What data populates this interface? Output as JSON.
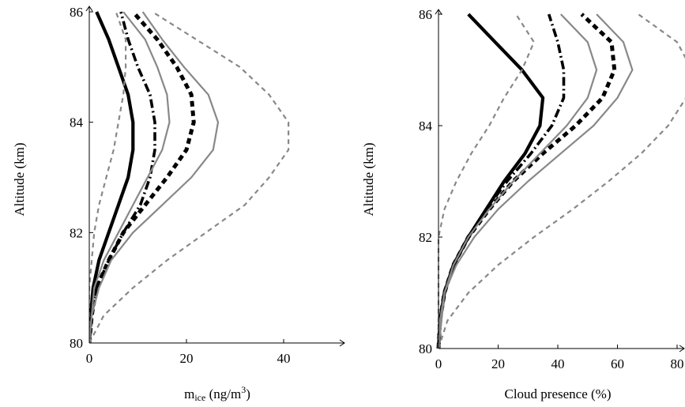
{
  "chart_data": [
    {
      "type": "line",
      "xlabel": "m",
      "xlabel_sub": "ice",
      "xlabel_units": " (ng/m",
      "xlabel_sup": "3",
      "xlabel_close": ")",
      "ylabel": "Altitude (km)",
      "xlim": [
        0,
        50
      ],
      "ylim": [
        80,
        86
      ],
      "xticks": [
        0,
        20,
        40
      ],
      "yticks": [
        80,
        82,
        84,
        86
      ],
      "grid": false,
      "series": [
        {
          "style": "solid-black-thick",
          "color": "#000000",
          "points": [
            [
              0,
              80
            ],
            [
              0.3,
              80.5
            ],
            [
              0.8,
              81
            ],
            [
              2,
              81.5
            ],
            [
              4,
              82
            ],
            [
              6,
              82.5
            ],
            [
              8,
              83
            ],
            [
              9,
              83.5
            ],
            [
              9,
              84
            ],
            [
              8,
              84.5
            ],
            [
              6,
              85
            ],
            [
              4,
              85.5
            ],
            [
              1.5,
              86
            ]
          ]
        },
        {
          "style": "dashdot-black",
          "color": "#000000",
          "points": [
            [
              0,
              80
            ],
            [
              0.5,
              80.5
            ],
            [
              1.5,
              81
            ],
            [
              4,
              81.5
            ],
            [
              7,
              82
            ],
            [
              10.5,
              82.5
            ],
            [
              12.5,
              83
            ],
            [
              13.5,
              83.5
            ],
            [
              13.5,
              84
            ],
            [
              12.5,
              84.5
            ],
            [
              10,
              85
            ],
            [
              8,
              85.5
            ],
            [
              6.5,
              86
            ]
          ]
        },
        {
          "style": "dashed-black-thick",
          "color": "#000000",
          "points": [
            [
              0,
              80
            ],
            [
              0.5,
              80.5
            ],
            [
              1.5,
              81
            ],
            [
              4,
              81.5
            ],
            [
              7,
              82
            ],
            [
              11.5,
              82.5
            ],
            [
              16,
              83
            ],
            [
              20,
              83.5
            ],
            [
              21.5,
              84
            ],
            [
              21,
              84.5
            ],
            [
              18,
              85
            ],
            [
              14,
              85.5
            ],
            [
              9,
              86
            ]
          ]
        },
        {
          "style": "solid-gray",
          "color": "#888888",
          "points": [
            [
              0,
              80
            ],
            [
              0.5,
              80.5
            ],
            [
              1,
              81
            ],
            [
              3,
              81.5
            ],
            [
              6,
              82
            ],
            [
              9,
              82.5
            ],
            [
              12,
              83
            ],
            [
              15,
              83.5
            ],
            [
              16.5,
              84
            ],
            [
              16,
              84.5
            ],
            [
              14,
              85
            ],
            [
              11.5,
              85.5
            ],
            [
              7,
              86
            ]
          ]
        },
        {
          "style": "solid-gray",
          "color": "#888888",
          "points": [
            [
              0,
              80
            ],
            [
              0.5,
              80.5
            ],
            [
              2,
              81
            ],
            [
              4.5,
              81.5
            ],
            [
              9,
              82
            ],
            [
              15,
              82.5
            ],
            [
              21,
              83
            ],
            [
              25.5,
              83.5
            ],
            [
              26.5,
              84
            ],
            [
              24.5,
              84.5
            ],
            [
              19.5,
              85
            ],
            [
              15,
              85.5
            ],
            [
              11,
              86
            ]
          ]
        },
        {
          "style": "dashed-gray",
          "color": "#888888",
          "points": [
            [
              0,
              80
            ],
            [
              3,
              80.5
            ],
            [
              9,
              81
            ],
            [
              16,
              81.5
            ],
            [
              24,
              82
            ],
            [
              32,
              82.5
            ],
            [
              37,
              83
            ],
            [
              41,
              83.5
            ],
            [
              41,
              84
            ],
            [
              37,
              84.5
            ],
            [
              31,
              85
            ],
            [
              22,
              85.5
            ],
            [
              13,
              86
            ]
          ]
        },
        {
          "style": "dashed-gray",
          "color": "#888888",
          "points": [
            [
              0,
              80
            ],
            [
              0,
              80.5
            ],
            [
              0,
              81
            ],
            [
              0.5,
              81.5
            ],
            [
              1,
              82
            ],
            [
              2,
              82.5
            ],
            [
              3.5,
              83
            ],
            [
              5,
              83.5
            ],
            [
              6,
              84
            ],
            [
              7,
              84.5
            ],
            [
              7.5,
              85
            ],
            [
              7.5,
              85.5
            ],
            [
              5.5,
              86
            ]
          ]
        }
      ]
    },
    {
      "type": "line",
      "xlabel": "Cloud presence (%)",
      "ylabel": "Altitude (km)",
      "xlim": [
        0,
        85
      ],
      "ylim": [
        80,
        86
      ],
      "xticks": [
        0,
        20,
        40,
        60,
        80
      ],
      "yticks": [
        80,
        82,
        84,
        86
      ],
      "grid": false,
      "series": [
        {
          "style": "solid-black-thick",
          "color": "#000000",
          "points": [
            [
              0,
              80
            ],
            [
              0.5,
              80.5
            ],
            [
              2,
              81
            ],
            [
              5,
              81.5
            ],
            [
              10,
              82
            ],
            [
              16,
              82.5
            ],
            [
              22,
              83
            ],
            [
              29,
              83.5
            ],
            [
              34,
              84
            ],
            [
              35,
              84.5
            ],
            [
              28,
              85
            ],
            [
              19,
              85.5
            ],
            [
              10,
              86
            ]
          ]
        },
        {
          "style": "dashdot-black",
          "color": "#000000",
          "points": [
            [
              0,
              80
            ],
            [
              0.5,
              80.5
            ],
            [
              2,
              81
            ],
            [
              5,
              81.5
            ],
            [
              10,
              82
            ],
            [
              16,
              82.5
            ],
            [
              23,
              83
            ],
            [
              31,
              83.5
            ],
            [
              38,
              84
            ],
            [
              42,
              84.5
            ],
            [
              42,
              85
            ],
            [
              40,
              85.5
            ],
            [
              37,
              86
            ]
          ]
        },
        {
          "style": "dashed-black-thick",
          "color": "#000000",
          "points": [
            [
              0,
              80
            ],
            [
              0.5,
              80.5
            ],
            [
              2,
              81
            ],
            [
              5,
              81.5
            ],
            [
              10,
              82
            ],
            [
              17,
              82.5
            ],
            [
              25,
              83
            ],
            [
              35,
              83.5
            ],
            [
              46,
              84
            ],
            [
              55,
              84.5
            ],
            [
              59,
              85
            ],
            [
              58,
              85.5
            ],
            [
              48,
              86
            ]
          ]
        },
        {
          "style": "solid-gray",
          "color": "#888888",
          "points": [
            [
              0,
              80
            ],
            [
              0.5,
              80.5
            ],
            [
              2,
              81
            ],
            [
              5,
              81.5
            ],
            [
              10,
              82
            ],
            [
              17,
              82.5
            ],
            [
              25,
              83
            ],
            [
              34,
              83.5
            ],
            [
              43,
              84
            ],
            [
              50,
              84.5
            ],
            [
              53,
              85
            ],
            [
              50,
              85.5
            ],
            [
              41,
              86
            ]
          ]
        },
        {
          "style": "solid-gray",
          "color": "#888888",
          "points": [
            [
              0,
              80
            ],
            [
              1,
              80.5
            ],
            [
              2,
              81
            ],
            [
              6,
              81.5
            ],
            [
              12,
              82
            ],
            [
              20,
              82.5
            ],
            [
              30,
              83
            ],
            [
              41,
              83.5
            ],
            [
              52,
              84
            ],
            [
              60,
              84.5
            ],
            [
              65,
              85
            ],
            [
              62,
              85.5
            ],
            [
              53,
              86
            ]
          ]
        },
        {
          "style": "dashed-gray",
          "color": "#888888",
          "points": [
            [
              0,
              80
            ],
            [
              3,
              80.5
            ],
            [
              10,
              81
            ],
            [
              20,
              81.5
            ],
            [
              32,
              82
            ],
            [
              45,
              82.5
            ],
            [
              57,
              83
            ],
            [
              68,
              83.5
            ],
            [
              77,
              84
            ],
            [
              83,
              84.5
            ],
            [
              85,
              85
            ],
            [
              80,
              85.5
            ],
            [
              67,
              86
            ]
          ]
        },
        {
          "style": "dashed-gray",
          "color": "#888888",
          "points": [
            [
              0,
              80
            ],
            [
              0,
              80.5
            ],
            [
              0,
              81
            ],
            [
              0,
              81.5
            ],
            [
              0,
              82
            ],
            [
              2,
              82.5
            ],
            [
              6,
              83
            ],
            [
              11,
              83.5
            ],
            [
              17,
              84
            ],
            [
              22,
              84.5
            ],
            [
              28,
              85
            ],
            [
              32,
              85.5
            ],
            [
              26,
              86
            ]
          ]
        }
      ]
    }
  ]
}
